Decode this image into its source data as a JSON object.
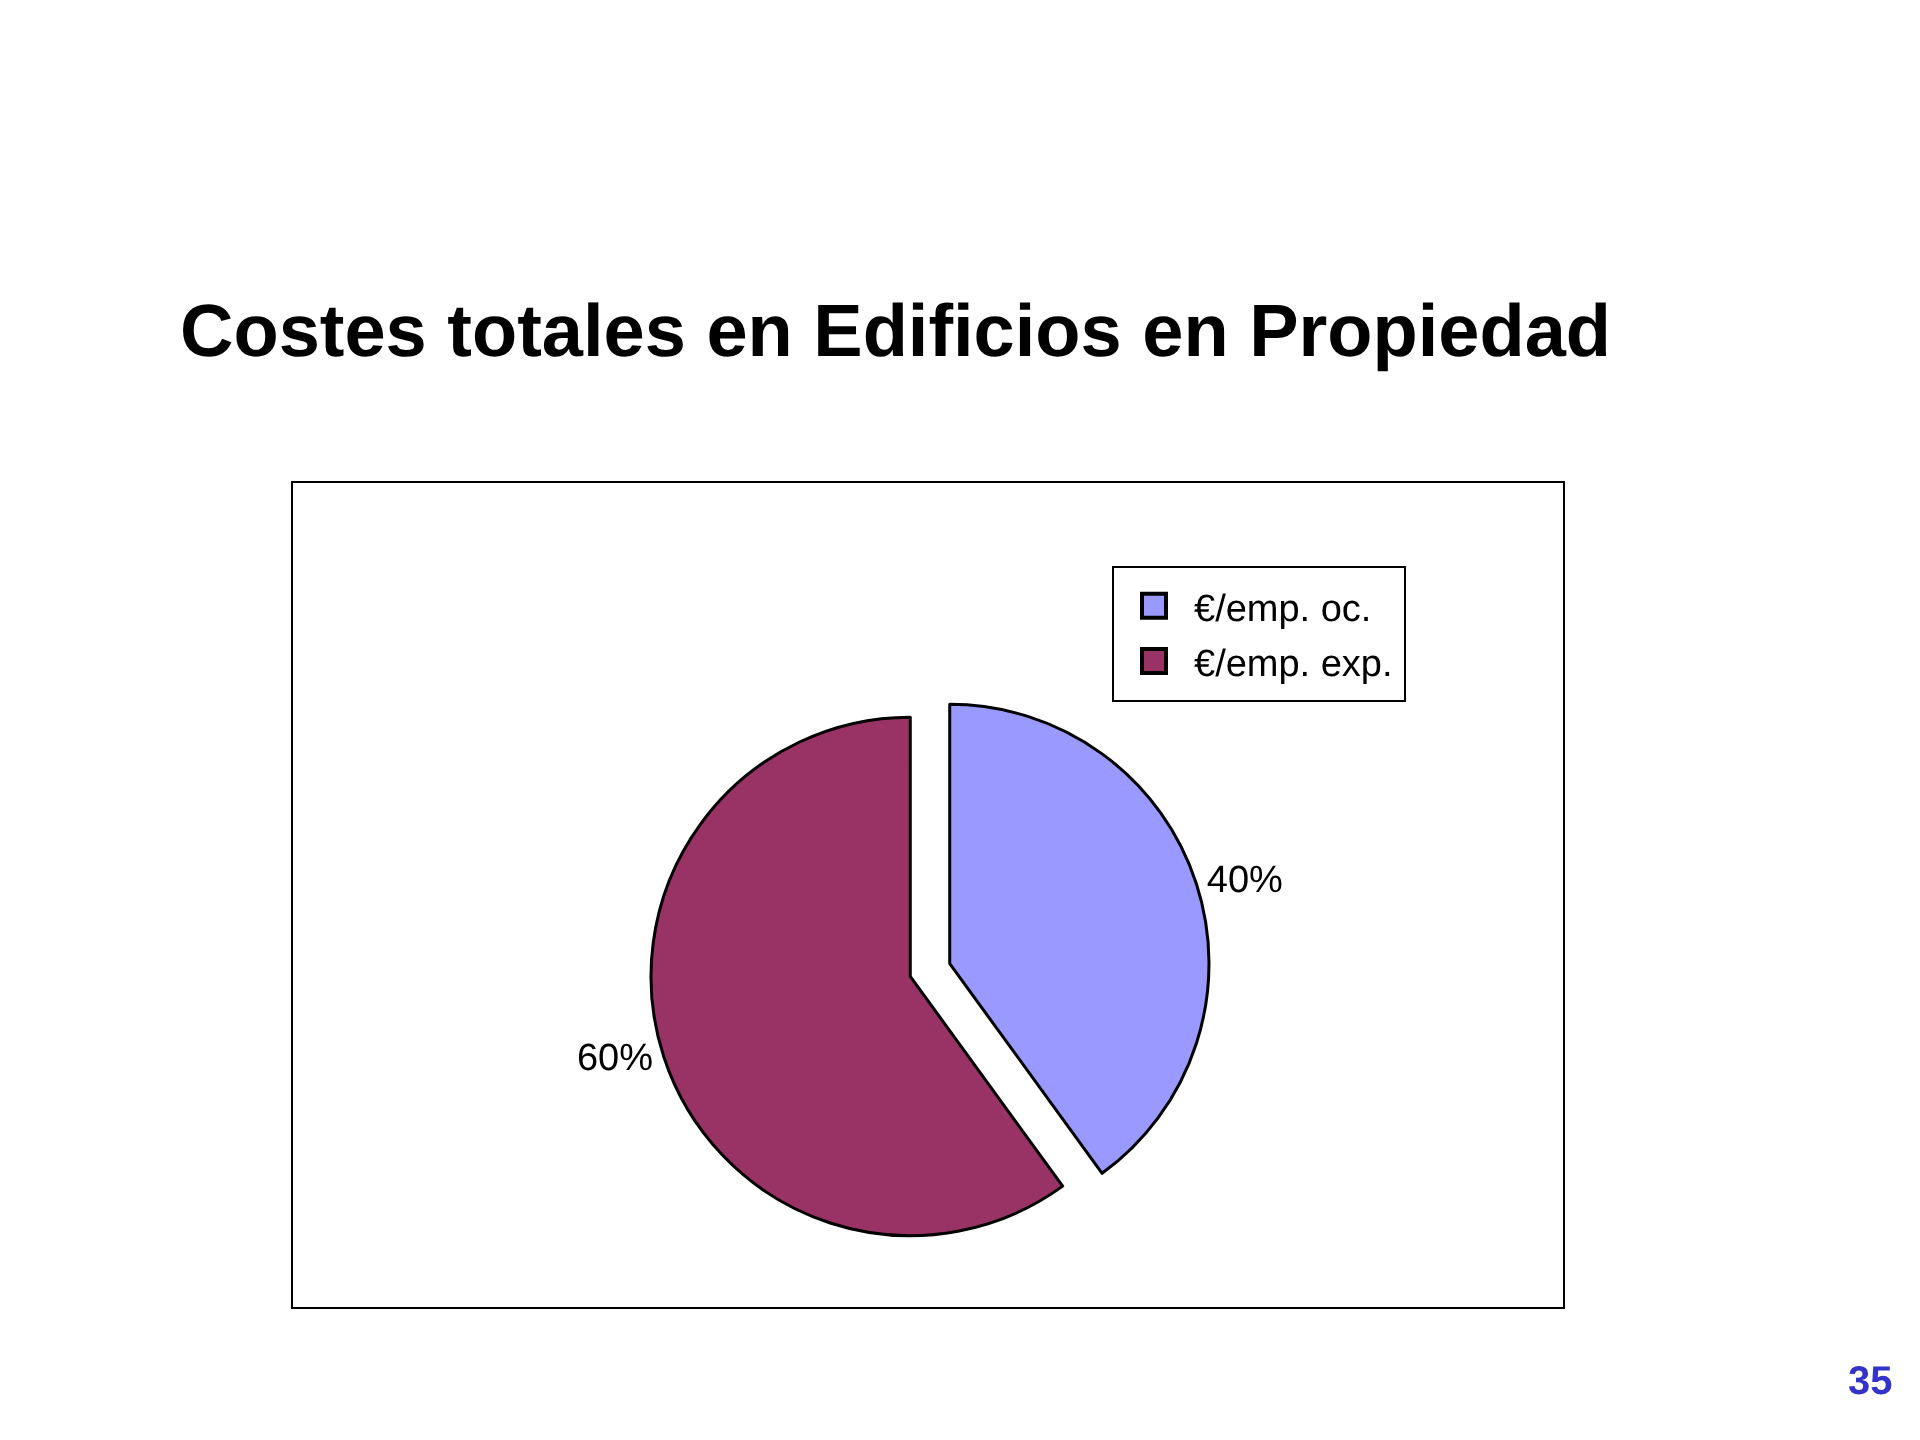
{
  "chart_data": {
    "type": "pie",
    "title": "Costes totales en Edificios en Propiedad",
    "categories": [
      "€/emp. oc.",
      "€/emp. exp."
    ],
    "values": [
      40,
      60
    ],
    "colors": [
      "#9999ff",
      "#993366"
    ],
    "value_labels": [
      "40%",
      "60%"
    ],
    "legend": "top right",
    "annotations": [
      "35"
    ]
  }
}
